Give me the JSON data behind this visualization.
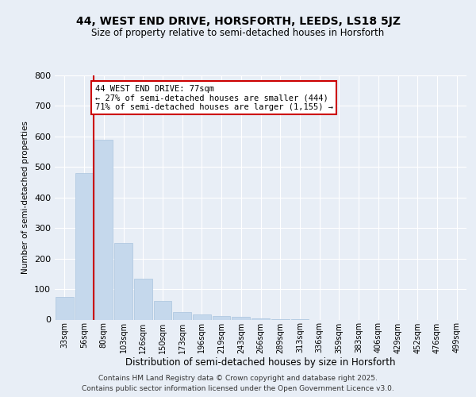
{
  "title": "44, WEST END DRIVE, HORSFORTH, LEEDS, LS18 5JZ",
  "subtitle": "Size of property relative to semi-detached houses in Horsforth",
  "xlabel": "Distribution of semi-detached houses by size in Horsforth",
  "ylabel": "Number of semi-detached properties",
  "categories": [
    "33sqm",
    "56sqm",
    "80sqm",
    "103sqm",
    "126sqm",
    "150sqm",
    "173sqm",
    "196sqm",
    "219sqm",
    "243sqm",
    "266sqm",
    "289sqm",
    "313sqm",
    "336sqm",
    "359sqm",
    "383sqm",
    "406sqm",
    "429sqm",
    "452sqm",
    "476sqm",
    "499sqm"
  ],
  "values": [
    75,
    480,
    590,
    250,
    135,
    60,
    25,
    18,
    12,
    8,
    5,
    2,
    1,
    0,
    0,
    0,
    0,
    0,
    0,
    0,
    0
  ],
  "bar_color": "#c5d8ec",
  "bar_edge_color": "#aac4de",
  "marker_line_index": 2,
  "marker_line_color": "#cc0000",
  "annotation_text": "44 WEST END DRIVE: 77sqm\n← 27% of semi-detached houses are smaller (444)\n71% of semi-detached houses are larger (1,155) →",
  "annotation_box_color": "#ffffff",
  "annotation_box_edge_color": "#cc0000",
  "ylim": [
    0,
    800
  ],
  "yticks": [
    0,
    100,
    200,
    300,
    400,
    500,
    600,
    700,
    800
  ],
  "bg_color": "#e8eef6",
  "plot_bg_color": "#e8eef6",
  "footer_line1": "Contains HM Land Registry data © Crown copyright and database right 2025.",
  "footer_line2": "Contains public sector information licensed under the Open Government Licence v3.0.",
  "title_fontsize": 10,
  "subtitle_fontsize": 8.5,
  "tick_fontsize": 7,
  "ylabel_fontsize": 7.5,
  "xlabel_fontsize": 8.5,
  "footer_fontsize": 6.5,
  "annotation_fontsize": 7.5
}
